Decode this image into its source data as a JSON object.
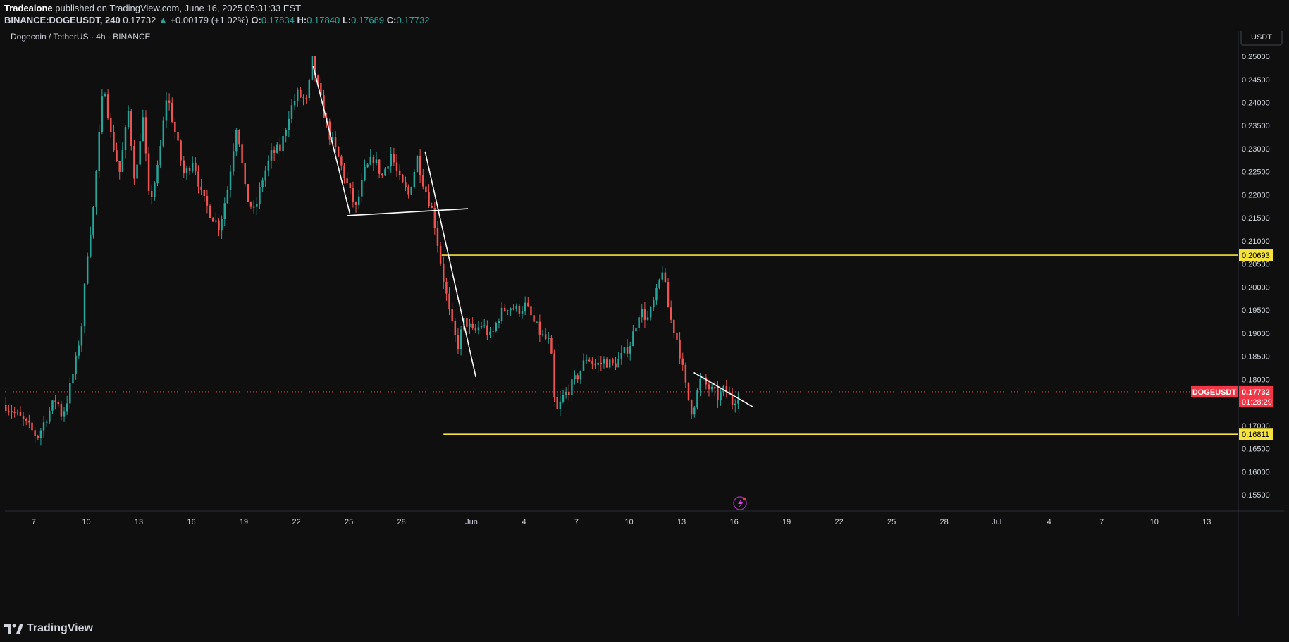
{
  "header": {
    "author": "Tradeaione",
    "published": "published on TradingView.com, June 16, 2025 05:31:33 EST",
    "symbol": "BINANCE:DOGEUSDT, 240",
    "last": "0.17732",
    "change": "+0.00179 (+1.02%)",
    "o_label": "O:",
    "o": "0.17834",
    "h_label": "H:",
    "h": "0.17840",
    "l_label": "L:",
    "l": "0.17689",
    "c_label": "C:",
    "c": "0.17732"
  },
  "chart_title": "Dogecoin / TetherUS · 4h · BINANCE",
  "currency_button": "USDT",
  "price_tag": {
    "symbol": "DOGEUSDT",
    "price": "0.17732",
    "countdown": "01:28:29"
  },
  "level_tags": [
    "0.20693",
    "0.16811"
  ],
  "brand": "TradingView",
  "colors": {
    "background": "#0f0f0f",
    "up": "#26a69a",
    "down": "#ef5350",
    "level_line": "#f5e23b",
    "last_price": "#f23645",
    "trendline": "#ffffff"
  },
  "chart_data": {
    "type": "candlestick",
    "timeframe": "4h",
    "y_axis": {
      "ticks": [
        "0.25000",
        "0.24500",
        "0.24000",
        "0.23500",
        "0.23000",
        "0.22500",
        "0.22000",
        "0.21500",
        "0.21000",
        "0.20500",
        "0.20000",
        "0.19500",
        "0.19000",
        "0.18500",
        "0.18000",
        "0.17500",
        "0.17000",
        "0.16500",
        "0.16000",
        "0.15500"
      ],
      "range": [
        0.1515,
        0.2555
      ]
    },
    "x_axis": {
      "ticks": [
        {
          "label": "7",
          "day": 0
        },
        {
          "label": "10",
          "day": 3
        },
        {
          "label": "13",
          "day": 6
        },
        {
          "label": "16",
          "day": 9
        },
        {
          "label": "19",
          "day": 12
        },
        {
          "label": "22",
          "day": 15
        },
        {
          "label": "25",
          "day": 18
        },
        {
          "label": "28",
          "day": 21
        },
        {
          "label": "Jun",
          "day": 25
        },
        {
          "label": "4",
          "day": 28
        },
        {
          "label": "7",
          "day": 31
        },
        {
          "label": "10",
          "day": 34
        },
        {
          "label": "13",
          "day": 37
        },
        {
          "label": "16",
          "day": 40
        },
        {
          "label": "19",
          "day": 43
        },
        {
          "label": "22",
          "day": 46
        },
        {
          "label": "25",
          "day": 49
        },
        {
          "label": "28",
          "day": 52
        },
        {
          "label": "Jul",
          "day": 55
        },
        {
          "label": "4",
          "day": 58
        },
        {
          "label": "7",
          "day": 61
        },
        {
          "label": "10",
          "day": 64
        },
        {
          "label": "13",
          "day": 67
        }
      ],
      "range": [
        -1.65,
        68.8
      ]
    },
    "price_path": [
      {
        "day": -1.6,
        "close": 0.1745
      },
      {
        "day": -0.6,
        "close": 0.171
      },
      {
        "day": 0.2,
        "close": 0.1675
      },
      {
        "day": 0.8,
        "close": 0.1725
      },
      {
        "day": 1.3,
        "close": 0.176
      },
      {
        "day": 1.6,
        "close": 0.172
      },
      {
        "day": 1.9,
        "close": 0.1755
      },
      {
        "day": 2.4,
        "close": 0.184
      },
      {
        "day": 2.8,
        "close": 0.1935
      },
      {
        "day": 3.0,
        "close": 0.206
      },
      {
        "day": 3.4,
        "close": 0.217
      },
      {
        "day": 3.6,
        "close": 0.2265
      },
      {
        "day": 4.0,
        "close": 0.245
      },
      {
        "day": 4.4,
        "close": 0.233
      },
      {
        "day": 4.9,
        "close": 0.225
      },
      {
        "day": 5.4,
        "close": 0.238
      },
      {
        "day": 5.8,
        "close": 0.222
      },
      {
        "day": 6.2,
        "close": 0.238
      },
      {
        "day": 6.6,
        "close": 0.218
      },
      {
        "day": 7.1,
        "close": 0.226
      },
      {
        "day": 7.6,
        "close": 0.242
      },
      {
        "day": 8.1,
        "close": 0.233
      },
      {
        "day": 8.6,
        "close": 0.224
      },
      {
        "day": 9.1,
        "close": 0.228
      },
      {
        "day": 9.6,
        "close": 0.2195
      },
      {
        "day": 10.1,
        "close": 0.216
      },
      {
        "day": 10.6,
        "close": 0.213
      },
      {
        "day": 11.1,
        "close": 0.222
      },
      {
        "day": 11.6,
        "close": 0.236
      },
      {
        "day": 12.1,
        "close": 0.22
      },
      {
        "day": 12.6,
        "close": 0.216
      },
      {
        "day": 13.1,
        "close": 0.224
      },
      {
        "day": 13.6,
        "close": 0.229
      },
      {
        "day": 14.1,
        "close": 0.23
      },
      {
        "day": 14.6,
        "close": 0.238
      },
      {
        "day": 15.1,
        "close": 0.242
      },
      {
        "day": 15.6,
        "close": 0.24
      },
      {
        "day": 15.9,
        "close": 0.249
      },
      {
        "day": 16.3,
        "close": 0.242
      },
      {
        "day": 16.8,
        "close": 0.234
      },
      {
        "day": 17.4,
        "close": 0.228
      },
      {
        "day": 18.1,
        "close": 0.22
      },
      {
        "day": 18.4,
        "close": 0.217
      },
      {
        "day": 18.9,
        "close": 0.225
      },
      {
        "day": 19.4,
        "close": 0.228
      },
      {
        "day": 19.9,
        "close": 0.224
      },
      {
        "day": 20.4,
        "close": 0.229
      },
      {
        "day": 20.9,
        "close": 0.223
      },
      {
        "day": 21.4,
        "close": 0.22
      },
      {
        "day": 21.9,
        "close": 0.228
      },
      {
        "day": 22.3,
        "close": 0.222
      },
      {
        "day": 22.8,
        "close": 0.216
      },
      {
        "day": 23.3,
        "close": 0.204
      },
      {
        "day": 23.8,
        "close": 0.193
      },
      {
        "day": 24.2,
        "close": 0.187
      },
      {
        "day": 24.6,
        "close": 0.193
      },
      {
        "day": 25.1,
        "close": 0.19
      },
      {
        "day": 25.6,
        "close": 0.192
      },
      {
        "day": 26.1,
        "close": 0.189
      },
      {
        "day": 26.6,
        "close": 0.194
      },
      {
        "day": 27.1,
        "close": 0.196
      },
      {
        "day": 27.6,
        "close": 0.195
      },
      {
        "day": 28.1,
        "close": 0.196
      },
      {
        "day": 28.6,
        "close": 0.192
      },
      {
        "day": 29.1,
        "close": 0.189
      },
      {
        "day": 29.5,
        "close": 0.188
      },
      {
        "day": 29.8,
        "close": 0.172
      },
      {
        "day": 30.2,
        "close": 0.176
      },
      {
        "day": 30.6,
        "close": 0.178
      },
      {
        "day": 31.1,
        "close": 0.181
      },
      {
        "day": 31.6,
        "close": 0.185
      },
      {
        "day": 32.1,
        "close": 0.183
      },
      {
        "day": 32.6,
        "close": 0.184
      },
      {
        "day": 33.1,
        "close": 0.183
      },
      {
        "day": 33.6,
        "close": 0.185
      },
      {
        "day": 34.1,
        "close": 0.188
      },
      {
        "day": 34.6,
        "close": 0.195
      },
      {
        "day": 35.1,
        "close": 0.193
      },
      {
        "day": 35.6,
        "close": 0.199
      },
      {
        "day": 35.9,
        "close": 0.204
      },
      {
        "day": 36.3,
        "close": 0.194
      },
      {
        "day": 36.8,
        "close": 0.188
      },
      {
        "day": 37.3,
        "close": 0.177
      },
      {
        "day": 37.6,
        "close": 0.173
      },
      {
        "day": 38.1,
        "close": 0.18
      },
      {
        "day": 38.6,
        "close": 0.178
      },
      {
        "day": 39.1,
        "close": 0.176
      },
      {
        "day": 39.5,
        "close": 0.178
      },
      {
        "day": 39.9,
        "close": 0.175
      },
      {
        "day": 40.3,
        "close": 0.1773
      }
    ],
    "annotations": {
      "horizontal_levels": [
        {
          "price": 0.20693,
          "start_day": 23.3
        },
        {
          "price": 0.16811,
          "start_day": 23.4
        }
      ],
      "trendlines": [
        {
          "from": {
            "day": 15.95,
            "price": 0.248
          },
          "to": {
            "day": 18.05,
            "price": 0.216
          }
        },
        {
          "from": {
            "day": 17.9,
            "price": 0.2155
          },
          "to": {
            "day": 24.8,
            "price": 0.217
          }
        },
        {
          "from": {
            "day": 22.35,
            "price": 0.2294
          },
          "to": {
            "day": 25.25,
            "price": 0.1805
          }
        },
        {
          "from": {
            "day": 37.7,
            "price": 0.1815
          },
          "to": {
            "day": 41.1,
            "price": 0.174
          }
        }
      ]
    },
    "last_price": 0.17732,
    "grid": false,
    "legend": "none"
  }
}
